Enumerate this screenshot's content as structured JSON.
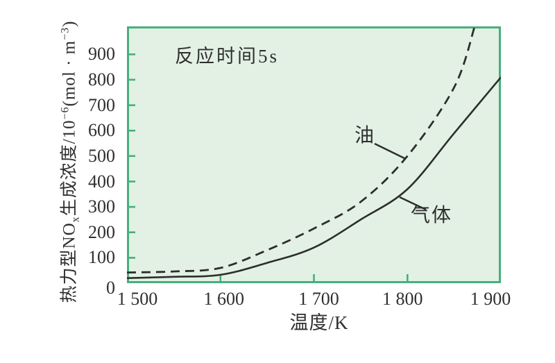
{
  "figure": {
    "annotation": "反应时间5s",
    "xlabel": "温度/K",
    "series_labels": {
      "oil": "油",
      "gas": "气体"
    },
    "ylabel_parts": {
      "p1": "热力型NO",
      "sub1": "x",
      "p2": "生成浓度/10",
      "sup1": "−6",
      "p3": "(mol · m",
      "sup2": "−3",
      "p4": ")"
    }
  },
  "chart_data": {
    "type": "line",
    "title": "反应时间5s",
    "xlabel": "温度/K",
    "ylabel": "热力型NOₓ生成浓度/10⁻⁶(mol·m⁻³)",
    "xlim": [
      1500,
      1900
    ],
    "ylim": [
      0,
      1010
    ],
    "x_ticks": [
      1500,
      1600,
      1700,
      1800,
      1900
    ],
    "x_tick_labels": [
      "1 500",
      "1 600",
      "1 700",
      "1 800",
      "1 900"
    ],
    "y_ticks": [
      0,
      100,
      200,
      300,
      400,
      500,
      600,
      700,
      800,
      900
    ],
    "y_tick_labels": [
      "0",
      "100",
      "200",
      "300",
      "400",
      "500",
      "600",
      "700",
      "800",
      "900"
    ],
    "grid": false,
    "legend_position": "inline-callouts",
    "series": [
      {
        "name": "油",
        "line_style": "dashed",
        "color": "#2d2d2d",
        "x": [
          1500,
          1550,
          1600,
          1650,
          1700,
          1750,
          1800,
          1850,
          1872
        ],
        "y": [
          42,
          46,
          60,
          130,
          215,
          320,
          500,
          770,
          1010
        ]
      },
      {
        "name": "气体",
        "line_style": "solid",
        "color": "#2d2d2d",
        "x": [
          1500,
          1550,
          1600,
          1650,
          1700,
          1750,
          1800,
          1850,
          1900
        ],
        "y": [
          20,
          25,
          33,
          80,
          140,
          250,
          370,
          590,
          810
        ]
      }
    ],
    "colors": {
      "page_bg": "#ffffff",
      "plot_bg": "#e2f1e3",
      "frame": "#46af7d",
      "curve": "#2d2d2d",
      "text": "#2f2f2f"
    }
  }
}
